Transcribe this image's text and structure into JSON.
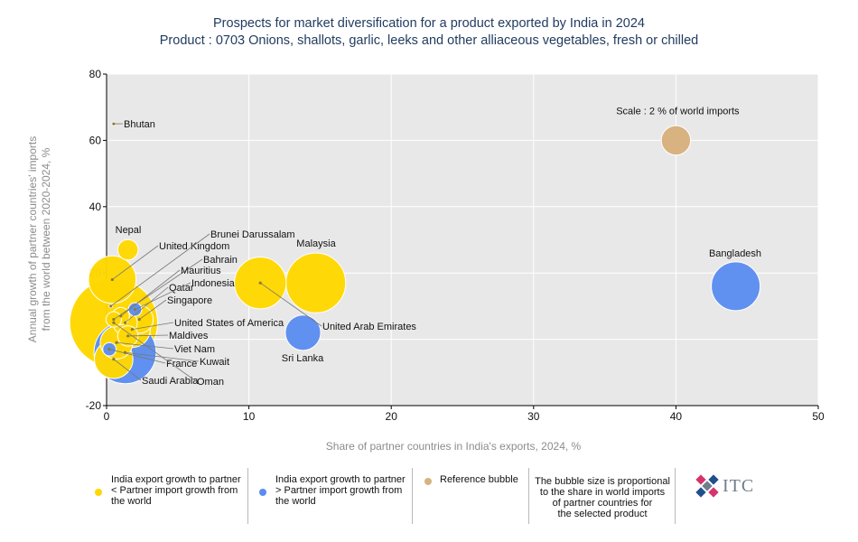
{
  "title": "Prospects for market diversification for a product exported by India in 2024",
  "subtitle": "Product : 0703 Onions, shallots, garlic, leeks and other alliaceous vegetables, fresh or chilled",
  "colors": {
    "yellow": "#ffd700",
    "blue": "#5b8def",
    "reference": "#d8b280",
    "plot_bg": "#e8e8e8",
    "grid": "#ffffff"
  },
  "chart_data": {
    "type": "scatter",
    "title": "Prospects for market diversification for a product exported by India in 2024",
    "xlabel": "Share of partner countries in India's exports, 2024, %",
    "ylabel": "Annual growth of partner countries' imports from the world between 2020-2024, %",
    "xlim": [
      0,
      50
    ],
    "ylim": [
      -20,
      80
    ],
    "xticks": [
      "0",
      "10",
      "20",
      "30",
      "40",
      "50"
    ],
    "yticks": [
      "-20",
      "0",
      "20",
      "40",
      "60",
      "80"
    ],
    "grid": true,
    "points": [
      {
        "name": "Bangladesh",
        "x": 44.2,
        "y": 16,
        "size": 4.0,
        "category": "blue"
      },
      {
        "name": "Malaysia",
        "x": 14.7,
        "y": 17,
        "size": 6.0,
        "category": "yellow"
      },
      {
        "name": "Sri Lanka",
        "x": 13.8,
        "y": 2,
        "size": 2.1,
        "category": "blue"
      },
      {
        "name": "United Arab Emirates",
        "x": 10.8,
        "y": 17,
        "size": 4.5,
        "category": "yellow"
      },
      {
        "name": "Nepal",
        "x": 1.5,
        "y": 27,
        "size": 0.7,
        "category": "yellow"
      },
      {
        "name": "Bhutan",
        "x": 0.5,
        "y": 65,
        "size": 0.02,
        "category": "yellow"
      },
      {
        "name": "United Kingdom",
        "x": 0.4,
        "y": 18,
        "size": 3.8,
        "category": "yellow"
      },
      {
        "name": "Brunei Darussalam",
        "x": 0.3,
        "y": 10,
        "size": 0.02,
        "category": "yellow"
      },
      {
        "name": "Bahrain",
        "x": 0.5,
        "y": 6,
        "size": 0.4,
        "category": "yellow"
      },
      {
        "name": "Mauritius",
        "x": 1.0,
        "y": 7,
        "size": 0.5,
        "category": "yellow"
      },
      {
        "name": "Qatar",
        "x": 1.3,
        "y": 5,
        "size": 1.0,
        "category": "yellow"
      },
      {
        "name": "Indonesia",
        "x": 2.0,
        "y": 9,
        "size": 0.3,
        "category": "blue"
      },
      {
        "name": "Singapore",
        "x": 2.3,
        "y": 6,
        "size": 1.3,
        "category": "yellow"
      },
      {
        "name": "United States of America",
        "x": 1.8,
        "y": 3,
        "size": 2.2,
        "category": "yellow"
      },
      {
        "name": "Maldives",
        "x": 1.5,
        "y": 1,
        "size": 0.7,
        "category": "yellow"
      },
      {
        "name": "Viet Nam",
        "x": 0.7,
        "y": -1,
        "size": 1.8,
        "category": "yellow"
      },
      {
        "name": "Kuwait",
        "x": 1.3,
        "y": -4,
        "size": 6.5,
        "category": "blue"
      },
      {
        "name": "France",
        "x": 0.2,
        "y": -3,
        "size": 0.3,
        "category": "blue"
      },
      {
        "name": "Saudi Arabia",
        "x": 0.5,
        "y": -6,
        "size": 2.5,
        "category": "yellow"
      },
      {
        "name": "Oman",
        "x": 0.5,
        "y": 5,
        "size": 13.0,
        "category": "yellow"
      }
    ],
    "reference_bubble": {
      "label": "Scale : 2 % of world imports",
      "x": 40,
      "y": 60,
      "size": 2
    }
  },
  "legend": {
    "items": [
      {
        "line1": "India export growth to partner",
        "line2": "< Partner import growth from",
        "line3": "the world",
        "color": "#ffd700"
      },
      {
        "line1": "India export growth to partner",
        "line2": "> Partner import growth from",
        "line3": "the world",
        "color": "#5b8def"
      },
      {
        "line1": "Reference bubble",
        "line2": "",
        "line3": "",
        "color": "#d8b280"
      }
    ],
    "note": [
      "The bubble size is proportional",
      "to the share in world imports",
      "of partner countries for",
      "the selected product"
    ]
  },
  "logo_text": "ITC"
}
